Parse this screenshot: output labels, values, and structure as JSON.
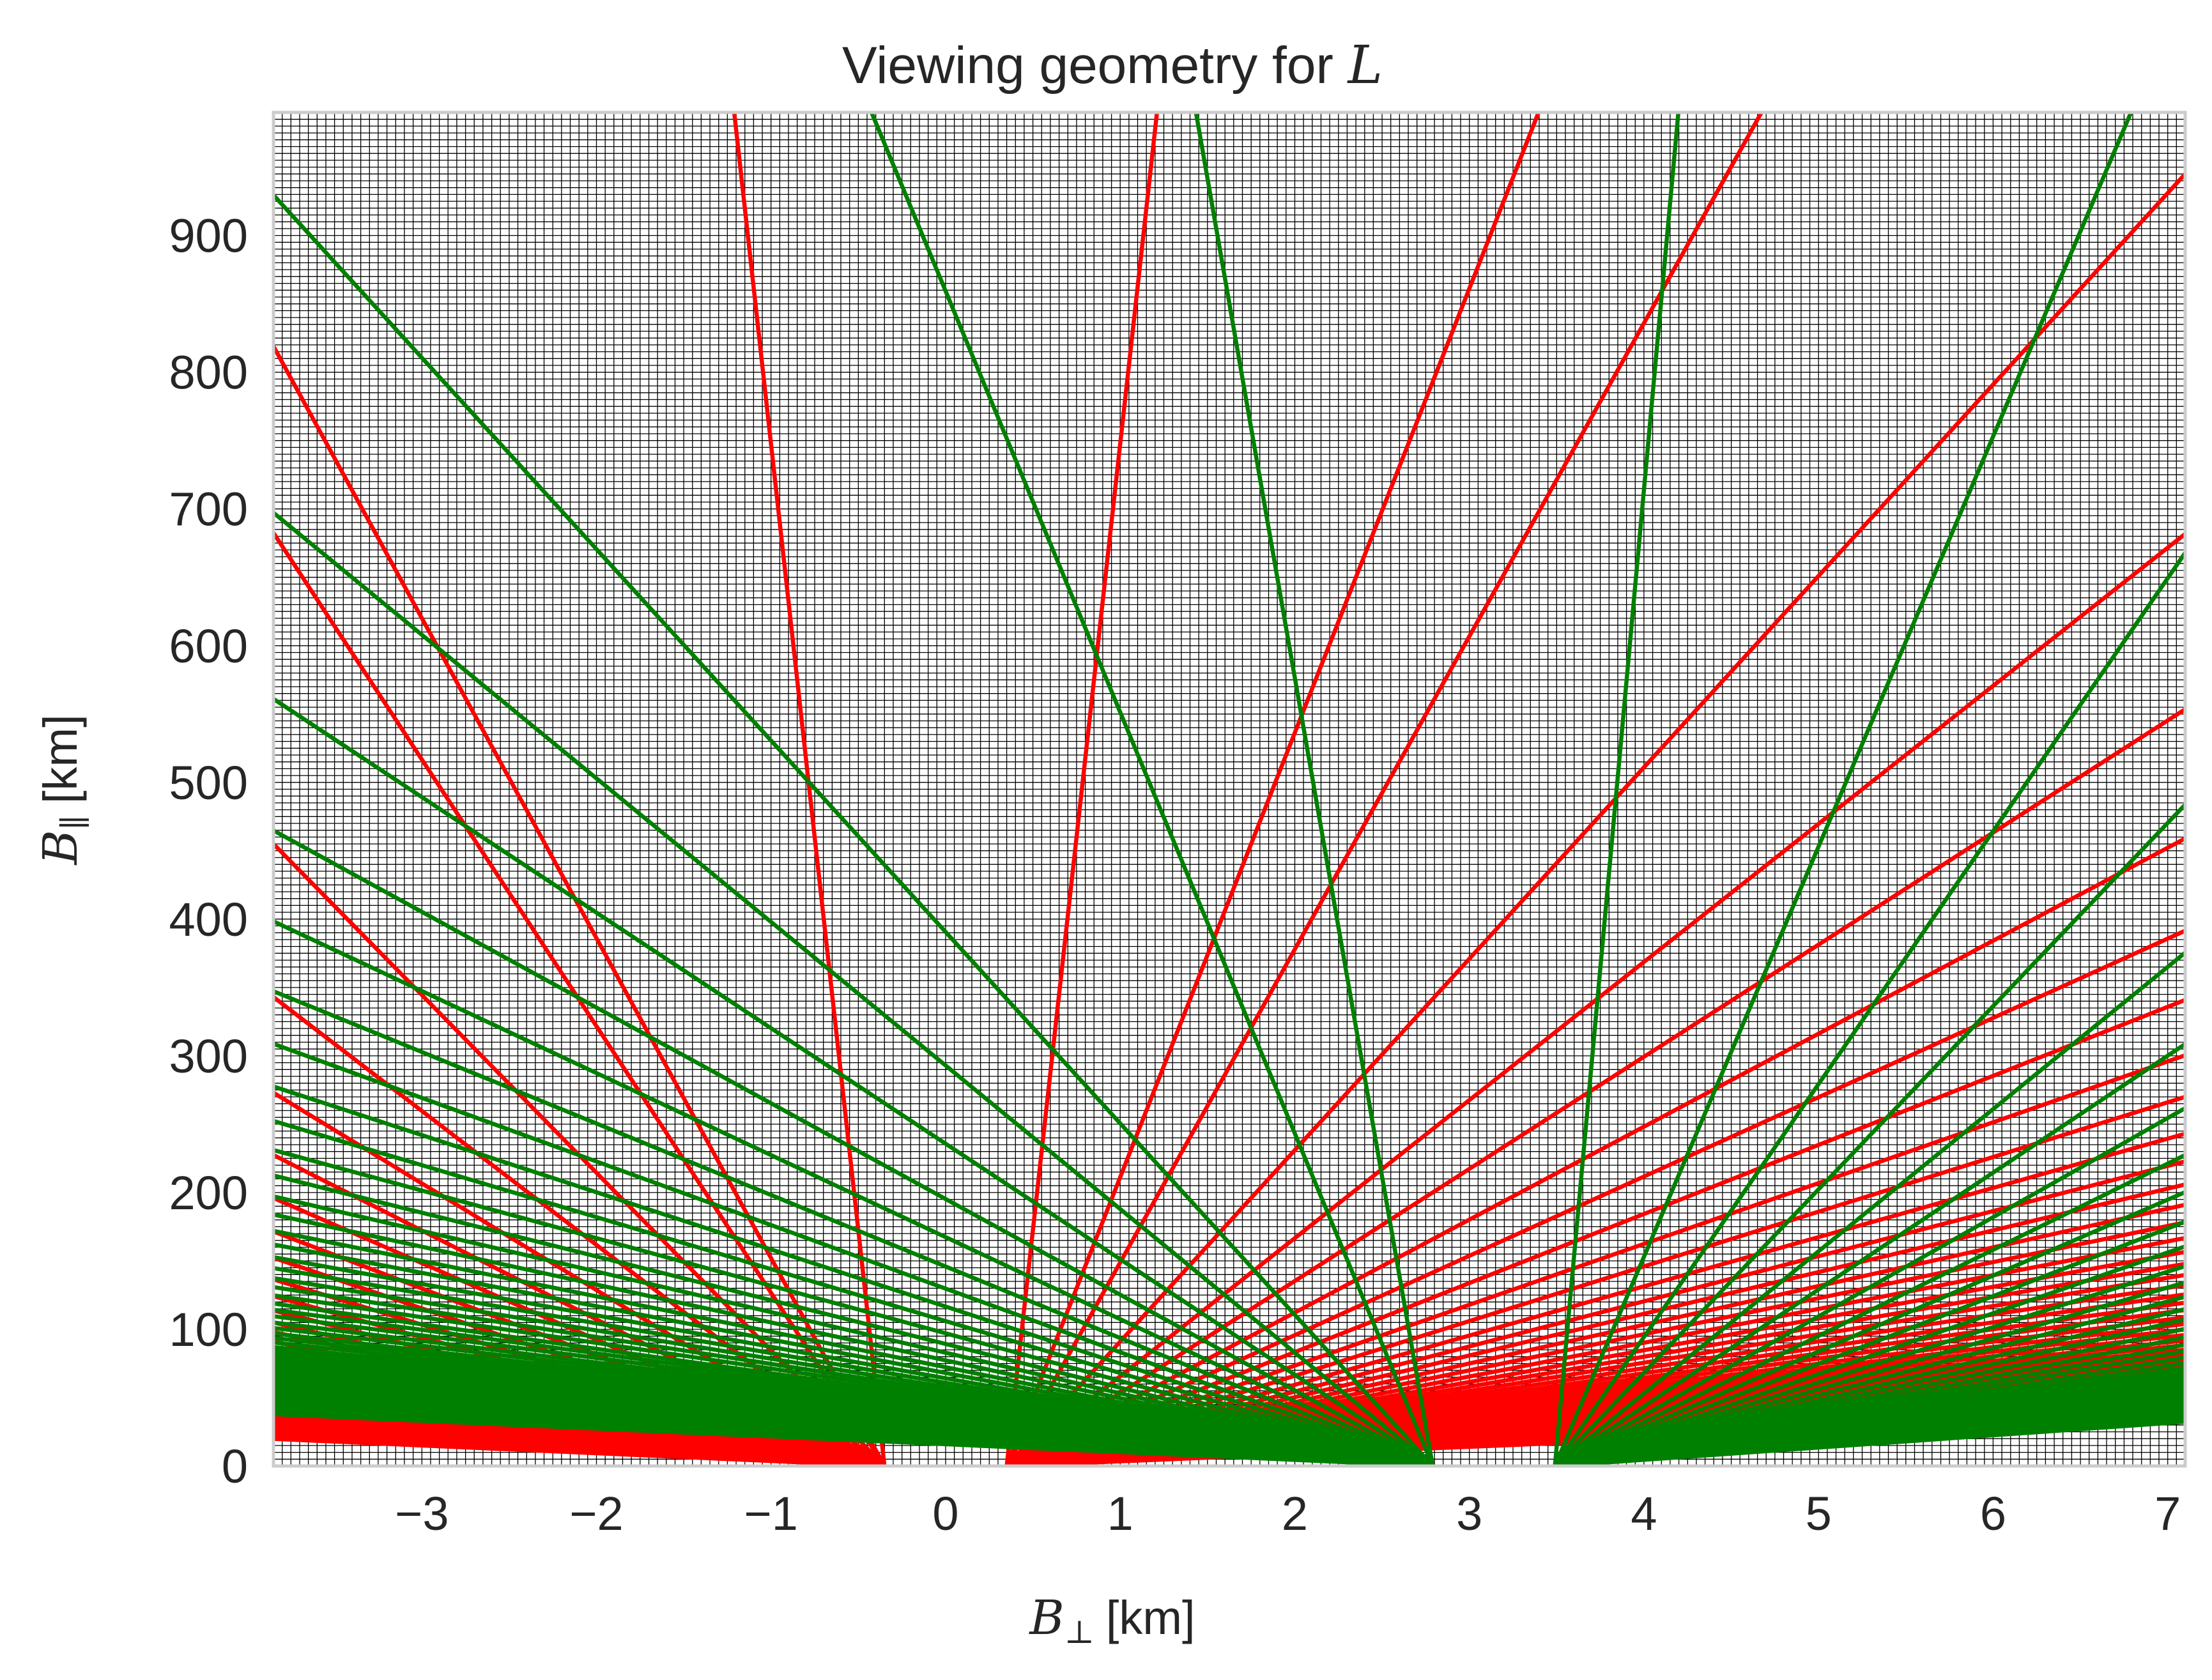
{
  "chart_data": {
    "type": "line",
    "title": "Viewing geometry for",
    "title_symbol": "L",
    "xlabel_symbol": "B",
    "xlabel_subscript": "⊥",
    "xlabel_unit": "[km]",
    "ylabel_symbol": "B",
    "ylabel_subscript": "∥",
    "ylabel_unit": "[km]",
    "xlim": [
      -3.85,
      7.1
    ],
    "ylim": [
      0,
      990
    ],
    "xticks": [
      -3,
      -2,
      -1,
      0,
      1,
      2,
      3,
      4,
      5,
      6,
      7
    ],
    "xtick_labels": [
      "−3",
      "−2",
      "−1",
      "0",
      "1",
      "2",
      "3",
      "4",
      "5",
      "6",
      "7"
    ],
    "yticks": [
      0,
      100,
      200,
      300,
      400,
      500,
      600,
      700,
      800,
      900
    ],
    "ytick_labels": [
      "0",
      "100",
      "200",
      "300",
      "400",
      "500",
      "600",
      "700",
      "800",
      "900"
    ],
    "grid": true,
    "legend": "none",
    "series": [
      {
        "color": "#ff0000",
        "origin_x": 0,
        "aperture_half_width": 0.35,
        "slopes": [
          -1150,
          -234,
          -195,
          -130,
          -98,
          -78,
          -65,
          -56,
          -49,
          -43.5,
          -39,
          -35.5,
          -32.5,
          -30,
          -28,
          -26,
          -24.5,
          -23,
          -21.5,
          -20.3,
          -19.2,
          -18.2,
          -17.3,
          -16.4,
          -15.7,
          -15,
          -14.3,
          -13.7,
          -13.1,
          -12.6,
          1150,
          325,
          229,
          140,
          101,
          82,
          68,
          58,
          50.5,
          44.5,
          40,
          36,
          33,
          30.5,
          28.3,
          26.4,
          24.7,
          23.2,
          21.9,
          20.7,
          19.6,
          18.6,
          17.7,
          16.9,
          16.1,
          15.4,
          14.8,
          14.2,
          13.6,
          13.1,
          12.6,
          12.2,
          11.8
        ]
      },
      {
        "color": "#008000",
        "origin_x": 3.14,
        "aperture_half_width": 0.35,
        "slopes": [
          -730,
          -308,
          -140,
          -105,
          -84.5,
          -70,
          -60,
          -52.3,
          -46.5,
          -41.8,
          -38,
          -34.8,
          -32,
          -29.7,
          -27.7,
          -25.9,
          -24.4,
          -23,
          -21.8,
          -20.7,
          -19.7,
          -18.8,
          -17.9,
          -17.2,
          -16.5,
          -15.8,
          -15.2,
          -14.6,
          -14.1,
          -13.6,
          -13.1,
          -12.7,
          1400,
          300,
          185,
          134,
          104,
          85.5,
          72.5,
          63,
          55.5,
          49.5,
          44.5,
          40.5,
          37.2,
          34.3,
          31.8,
          29.7,
          27.8,
          26.1,
          24.6,
          23.3,
          22,
          20.9,
          19.9
        ]
      }
    ]
  }
}
